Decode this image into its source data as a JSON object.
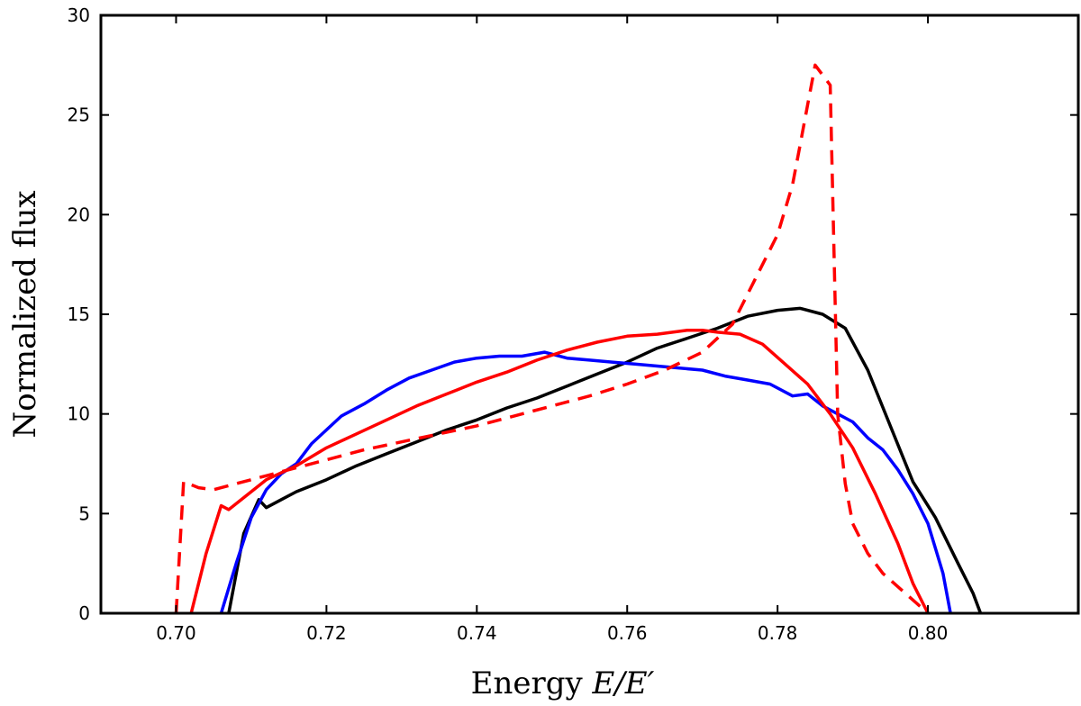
{
  "chart_data": {
    "type": "line",
    "title": "",
    "xlabel": "Energy E/E′",
    "xlabel_parts": {
      "text": "Energy ",
      "math": "E/E′"
    },
    "ylabel": "Normalized flux",
    "xlim": [
      0.69,
      0.82
    ],
    "ylim": [
      0,
      30
    ],
    "xticks": [
      0.7,
      0.72,
      0.74,
      0.76,
      0.78,
      0.8
    ],
    "xtick_labels": [
      "0.70",
      "0.72",
      "0.74",
      "0.76",
      "0.78",
      "0.80"
    ],
    "yticks": [
      0,
      5,
      10,
      15,
      20,
      25,
      30
    ],
    "ytick_labels": [
      "0",
      "5",
      "10",
      "15",
      "20",
      "25",
      "30"
    ],
    "grid": false,
    "legend": "none",
    "series": [
      {
        "color": "#000000",
        "style": "solid",
        "x": [
          0.707,
          0.709,
          0.711,
          0.712,
          0.714,
          0.716,
          0.72,
          0.724,
          0.728,
          0.732,
          0.736,
          0.74,
          0.744,
          0.748,
          0.752,
          0.756,
          0.76,
          0.764,
          0.768,
          0.772,
          0.776,
          0.78,
          0.783,
          0.786,
          0.789,
          0.792,
          0.795,
          0.798,
          0.801,
          0.804,
          0.806,
          0.807
        ],
        "y": [
          0,
          4.0,
          5.7,
          5.3,
          5.7,
          6.1,
          6.7,
          7.4,
          8.0,
          8.6,
          9.2,
          9.7,
          10.3,
          10.8,
          11.4,
          12.0,
          12.6,
          13.3,
          13.8,
          14.3,
          14.9,
          15.2,
          15.3,
          15.0,
          14.3,
          12.2,
          9.4,
          6.6,
          4.8,
          2.5,
          1.0,
          0
        ]
      },
      {
        "color": "#0000ff",
        "style": "solid",
        "x": [
          0.706,
          0.708,
          0.71,
          0.712,
          0.714,
          0.716,
          0.718,
          0.72,
          0.722,
          0.725,
          0.728,
          0.731,
          0.734,
          0.737,
          0.74,
          0.743,
          0.746,
          0.749,
          0.752,
          0.755,
          0.758,
          0.761,
          0.764,
          0.767,
          0.77,
          0.773,
          0.776,
          0.779,
          0.782,
          0.784,
          0.786,
          0.788,
          0.79,
          0.792,
          0.794,
          0.796,
          0.798,
          0.8,
          0.802,
          0.803
        ],
        "y": [
          0,
          2.5,
          4.8,
          6.2,
          7.0,
          7.5,
          8.5,
          9.2,
          9.9,
          10.5,
          11.2,
          11.8,
          12.2,
          12.6,
          12.8,
          12.9,
          12.9,
          13.1,
          12.8,
          12.7,
          12.6,
          12.5,
          12.4,
          12.3,
          12.2,
          11.9,
          11.7,
          11.5,
          10.9,
          11.0,
          10.4,
          10.0,
          9.6,
          8.8,
          8.2,
          7.2,
          6.0,
          4.5,
          2.0,
          0
        ]
      },
      {
        "color": "#ff0000",
        "style": "solid",
        "x": [
          0.702,
          0.704,
          0.706,
          0.707,
          0.709,
          0.712,
          0.716,
          0.72,
          0.724,
          0.728,
          0.732,
          0.736,
          0.74,
          0.744,
          0.748,
          0.752,
          0.756,
          0.76,
          0.764,
          0.768,
          0.77,
          0.772,
          0.775,
          0.778,
          0.781,
          0.784,
          0.787,
          0.79,
          0.793,
          0.796,
          0.798,
          0.8
        ],
        "y": [
          0,
          3.0,
          5.4,
          5.2,
          5.8,
          6.7,
          7.4,
          8.3,
          9.0,
          9.7,
          10.4,
          11.0,
          11.6,
          12.1,
          12.7,
          13.2,
          13.6,
          13.9,
          14.0,
          14.2,
          14.2,
          14.1,
          14.0,
          13.5,
          12.5,
          11.5,
          10.0,
          8.3,
          6.0,
          3.5,
          1.5,
          0
        ]
      },
      {
        "color": "#ff0000",
        "style": "dashed",
        "x": [
          0.7,
          0.701,
          0.703,
          0.705,
          0.708,
          0.712,
          0.716,
          0.72,
          0.725,
          0.73,
          0.735,
          0.74,
          0.745,
          0.75,
          0.755,
          0.76,
          0.765,
          0.77,
          0.774,
          0.776,
          0.778,
          0.78,
          0.782,
          0.783,
          0.784,
          0.785,
          0.786,
          0.787,
          0.788,
          0.789,
          0.79,
          0.792,
          0.794,
          0.797,
          0.8
        ],
        "y": [
          0,
          6.6,
          6.3,
          6.2,
          6.5,
          6.9,
          7.3,
          7.7,
          8.2,
          8.6,
          9.0,
          9.4,
          9.9,
          10.4,
          10.9,
          11.5,
          12.2,
          13.1,
          14.5,
          16.0,
          17.5,
          19.0,
          21.5,
          23.5,
          25.5,
          27.5,
          27.0,
          26.5,
          10.0,
          6.5,
          4.5,
          3.0,
          2.0,
          1.0,
          0
        ]
      }
    ]
  }
}
